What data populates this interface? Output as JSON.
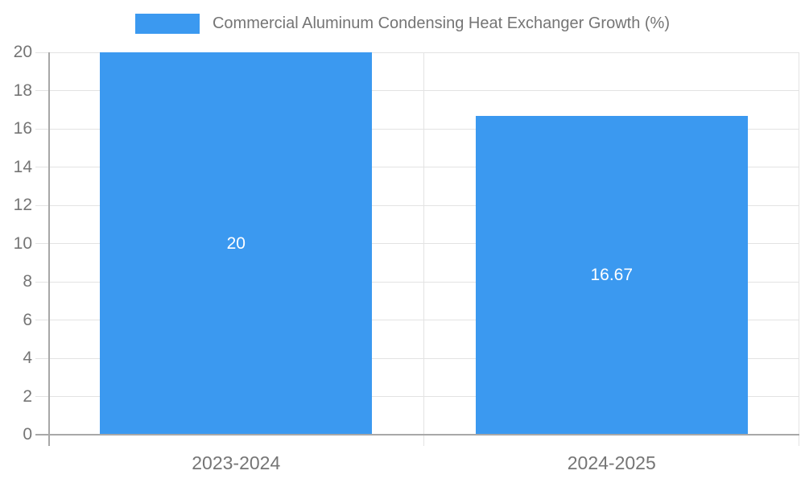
{
  "chart_data": {
    "type": "bar",
    "title": "",
    "legend": {
      "label": "Commercial Aluminum Condensing Heat Exchanger Growth (%)",
      "position": "top"
    },
    "categories": [
      "2023-2024",
      "2024-2025"
    ],
    "values": [
      20,
      16.67
    ],
    "value_labels": [
      "20",
      "16.67"
    ],
    "xlabel": "",
    "ylabel": "",
    "ylim": [
      0,
      20
    ],
    "yticks": [
      0,
      2,
      4,
      6,
      8,
      10,
      12,
      14,
      16,
      18,
      20
    ],
    "grid": true,
    "colors": {
      "bar": "#3B99F0",
      "grid": "#E3E3E3",
      "axis": "#A8A8A8",
      "tick_text": "#757575",
      "value_label_text": "#FFFFFF",
      "background": "#FFFFFF"
    }
  }
}
